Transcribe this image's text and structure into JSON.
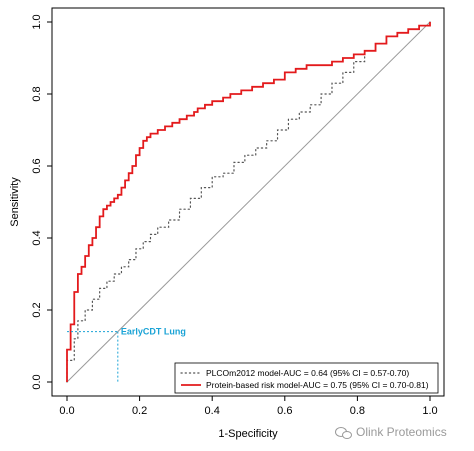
{
  "chart_data": {
    "type": "line",
    "title": "",
    "xlabel": "1-Specificity",
    "ylabel": "Sensitivity",
    "xlim": [
      0,
      1
    ],
    "ylim": [
      0,
      1
    ],
    "x_ticks": [
      "0.0",
      "0.2",
      "0.4",
      "0.6",
      "0.8",
      "1.0"
    ],
    "y_ticks": [
      "0.0",
      "0.2",
      "0.4",
      "0.6",
      "0.8",
      "1.0"
    ],
    "grid": false,
    "legend_position": "bottom-right",
    "diagonal_reference": true,
    "series": [
      {
        "name": "PLCOm2012 model-AUC = 0.64 (95% CI = 0.57-0.70)",
        "color": "#555555",
        "style": "dotted",
        "x": [
          0.0,
          0.0,
          0.02,
          0.03,
          0.05,
          0.07,
          0.09,
          0.11,
          0.13,
          0.15,
          0.17,
          0.19,
          0.21,
          0.23,
          0.25,
          0.28,
          0.31,
          0.34,
          0.37,
          0.4,
          0.43,
          0.46,
          0.49,
          0.52,
          0.55,
          0.58,
          0.61,
          0.64,
          0.67,
          0.7,
          0.73,
          0.76,
          0.79,
          0.82,
          0.85,
          0.88,
          0.91,
          0.94,
          0.97,
          1.0
        ],
        "y": [
          0.0,
          0.06,
          0.12,
          0.17,
          0.2,
          0.23,
          0.26,
          0.28,
          0.3,
          0.32,
          0.34,
          0.37,
          0.39,
          0.41,
          0.43,
          0.45,
          0.48,
          0.51,
          0.54,
          0.57,
          0.58,
          0.61,
          0.63,
          0.65,
          0.67,
          0.7,
          0.73,
          0.75,
          0.77,
          0.8,
          0.83,
          0.86,
          0.89,
          0.92,
          0.94,
          0.96,
          0.97,
          0.98,
          0.99,
          1.0
        ]
      },
      {
        "name": "Protein-based risk model-AUC = 0.75 (95% CI = 0.70-0.81)",
        "color": "#e31a1c",
        "style": "solid",
        "x": [
          0.0,
          0.0,
          0.01,
          0.01,
          0.02,
          0.02,
          0.03,
          0.03,
          0.04,
          0.05,
          0.06,
          0.07,
          0.08,
          0.09,
          0.1,
          0.11,
          0.12,
          0.13,
          0.14,
          0.15,
          0.16,
          0.17,
          0.18,
          0.19,
          0.2,
          0.21,
          0.22,
          0.23,
          0.25,
          0.27,
          0.29,
          0.31,
          0.33,
          0.35,
          0.36,
          0.38,
          0.4,
          0.43,
          0.45,
          0.48,
          0.51,
          0.54,
          0.57,
          0.6,
          0.63,
          0.66,
          0.7,
          0.73,
          0.76,
          0.79,
          0.82,
          0.85,
          0.88,
          0.91,
          0.94,
          0.97,
          1.0
        ],
        "y": [
          0.0,
          0.09,
          0.1,
          0.16,
          0.2,
          0.25,
          0.28,
          0.3,
          0.32,
          0.35,
          0.38,
          0.4,
          0.43,
          0.46,
          0.48,
          0.49,
          0.5,
          0.51,
          0.52,
          0.54,
          0.56,
          0.58,
          0.6,
          0.63,
          0.65,
          0.67,
          0.68,
          0.69,
          0.7,
          0.71,
          0.72,
          0.73,
          0.74,
          0.75,
          0.76,
          0.77,
          0.78,
          0.79,
          0.8,
          0.81,
          0.82,
          0.83,
          0.84,
          0.86,
          0.87,
          0.88,
          0.88,
          0.89,
          0.9,
          0.91,
          0.92,
          0.94,
          0.96,
          0.97,
          0.98,
          0.99,
          1.0
        ]
      }
    ],
    "annotations": [
      {
        "text": "EarlyCDT Lung",
        "x": 0.14,
        "y": 0.14,
        "color": "#1aa3d6"
      }
    ]
  },
  "watermark": "Olink Proteomics"
}
